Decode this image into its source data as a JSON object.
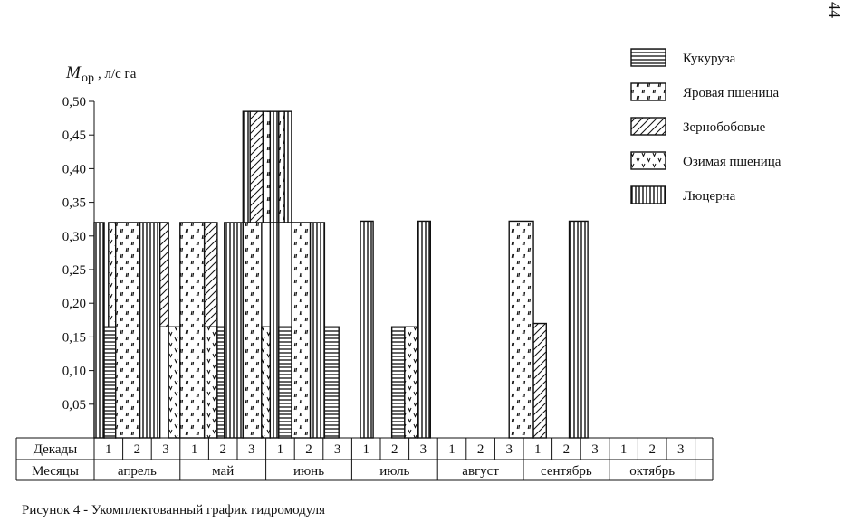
{
  "page_number": "44",
  "caption": "Рисунок 4  - Укомплектованный график гидромодуля",
  "chart_data": {
    "type": "bar",
    "ylabel_symbol": "M",
    "ylabel_subscript": "ор",
    "ylabel_unit": ", л/с га",
    "ylim": [
      0,
      0.5
    ],
    "yticks": [
      "0,05",
      "0,10",
      "0,15",
      "0,20",
      "0,25",
      "0,30",
      "0,35",
      "0,40",
      "0,45",
      "0,50"
    ],
    "row_labels": {
      "dekady": "Декады",
      "mesyacy": "Месяцы"
    },
    "months": [
      "апрель",
      "май",
      "июнь",
      "июль",
      "август",
      "сентябрь",
      "октябрь"
    ],
    "dekady": [
      "1",
      "2",
      "3",
      "1",
      "2",
      "3",
      "1",
      "2",
      "3",
      "1",
      "2",
      "3",
      "1",
      "2",
      "3",
      "1",
      "2",
      "3",
      "1",
      "2",
      "3"
    ],
    "legend": [
      {
        "key": "corn",
        "label": "Кукуруза"
      },
      {
        "key": "spring",
        "label": "Яровая пшеница"
      },
      {
        "key": "legumes",
        "label": "Зернобобовые"
      },
      {
        "key": "winter",
        "label": "Озимая пшеница"
      },
      {
        "key": "alfalfa",
        "label": "Люцерна"
      }
    ],
    "bars": [
      {
        "crop": "alfalfa",
        "x0": 0.0,
        "x1": 0.35,
        "y0": 0,
        "y1": 0.32
      },
      {
        "crop": "corn",
        "x0": 0.35,
        "x1": 0.75,
        "y0": 0,
        "y1": 0.165
      },
      {
        "crop": "winter",
        "x0": 0.5,
        "x1": 0.75,
        "y0": 0.165,
        "y1": 0.32
      },
      {
        "crop": "spring",
        "x0": 0.75,
        "x1": 1.6,
        "y0": 0,
        "y1": 0.32
      },
      {
        "crop": "alfalfa",
        "x0": 1.6,
        "x1": 2.3,
        "y0": 0,
        "y1": 0.32
      },
      {
        "crop": "legumes",
        "x0": 2.3,
        "x1": 2.6,
        "y0": 0.165,
        "y1": 0.32
      },
      {
        "crop": "winter",
        "x0": 2.6,
        "x1": 3.0,
        "y0": 0,
        "y1": 0.165
      },
      {
        "crop": "spring",
        "x0": 3.0,
        "x1": 3.85,
        "y0": 0,
        "y1": 0.32
      },
      {
        "crop": "legumes",
        "x0": 3.85,
        "x1": 4.3,
        "y0": 0.165,
        "y1": 0.32
      },
      {
        "crop": "winter",
        "x0": 3.85,
        "x1": 4.3,
        "y0": 0,
        "y1": 0.165
      },
      {
        "crop": "corn",
        "x0": 4.3,
        "x1": 4.55,
        "y0": 0,
        "y1": 0.165
      },
      {
        "crop": "alfalfa",
        "x0": 4.55,
        "x1": 5.2,
        "y0": 0,
        "y1": 0.32
      },
      {
        "crop": "spring",
        "x0": 5.2,
        "x1": 5.85,
        "y0": 0,
        "y1": 0.32
      },
      {
        "crop": "winter",
        "x0": 5.85,
        "x1": 6.15,
        "y0": 0,
        "y1": 0.165
      },
      {
        "crop": "alfalfa",
        "x0": 6.15,
        "x1": 6.45,
        "y0": 0,
        "y1": 0.32
      },
      {
        "crop": "corn",
        "x0": 6.45,
        "x1": 6.9,
        "y0": 0,
        "y1": 0.165
      },
      {
        "crop": "spring",
        "x0": 6.9,
        "x1": 7.55,
        "y0": 0,
        "y1": 0.32
      },
      {
        "crop": "alfalfa",
        "x0": 7.55,
        "x1": 8.05,
        "y0": 0,
        "y1": 0.32
      },
      {
        "crop": "corn",
        "x0": 8.05,
        "x1": 8.55,
        "y0": 0,
        "y1": 0.165
      },
      {
        "crop": "alfalfa",
        "x0": 5.2,
        "x1": 5.45,
        "y0": 0.32,
        "y1": 0.485
      },
      {
        "crop": "legumes",
        "x0": 5.45,
        "x1": 5.9,
        "y0": 0.32,
        "y1": 0.485
      },
      {
        "crop": "spring",
        "x0": 5.9,
        "x1": 6.15,
        "y0": 0.32,
        "y1": 0.485
      },
      {
        "crop": "alfalfa",
        "x0": 6.15,
        "x1": 6.45,
        "y0": 0.32,
        "y1": 0.485
      },
      {
        "crop": "spring",
        "x0": 6.45,
        "x1": 6.65,
        "y0": 0.32,
        "y1": 0.485
      },
      {
        "crop": "alfalfa",
        "x0": 6.65,
        "x1": 6.9,
        "y0": 0.32,
        "y1": 0.485
      },
      {
        "crop": "alfalfa",
        "x0": 9.3,
        "x1": 9.75,
        "y0": 0,
        "y1": 0.322
      },
      {
        "crop": "corn",
        "x0": 10.4,
        "x1": 10.85,
        "y0": 0,
        "y1": 0.165
      },
      {
        "crop": "winter",
        "x0": 10.85,
        "x1": 11.3,
        "y0": 0,
        "y1": 0.165
      },
      {
        "crop": "alfalfa",
        "x0": 11.3,
        "x1": 11.75,
        "y0": 0,
        "y1": 0.322
      },
      {
        "crop": "spring",
        "x0": 14.5,
        "x1": 15.35,
        "y0": 0,
        "y1": 0.322
      },
      {
        "crop": "legumes",
        "x0": 15.35,
        "x1": 15.8,
        "y0": 0,
        "y1": 0.17
      },
      {
        "crop": "alfalfa",
        "x0": 16.6,
        "x1": 17.25,
        "y0": 0,
        "y1": 0.322
      }
    ]
  }
}
